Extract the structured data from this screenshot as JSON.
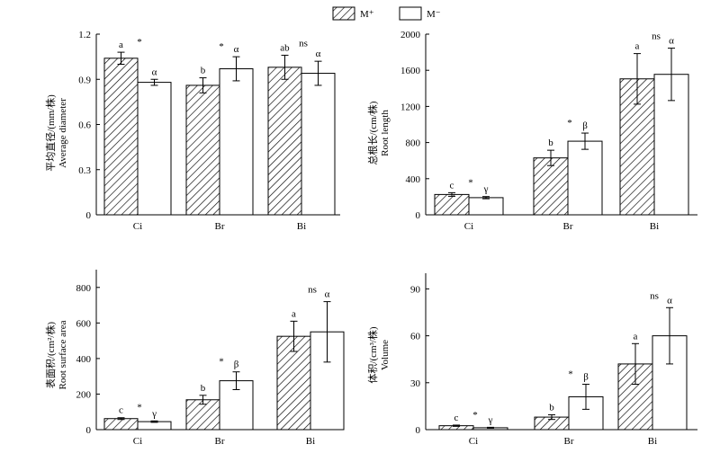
{
  "legend": {
    "items": [
      {
        "label": "M⁺",
        "pattern": "hatch"
      },
      {
        "label": "M⁻",
        "pattern": "open"
      }
    ]
  },
  "colors": {
    "ink": "#000000",
    "fill_open": "#ffffff"
  },
  "chart_data": [
    {
      "type": "bar",
      "ylabel_cn": "平均直径/(mm/株)",
      "ylabel_en": "Average diameter",
      "categories": [
        "Ci",
        "Br",
        "Bi"
      ],
      "ylim": [
        0,
        1.2
      ],
      "yticks": [
        0,
        0.3,
        0.6,
        0.9,
        1.2
      ],
      "ytick_labels": [
        "0",
        "0.3",
        "0.6",
        "0.9",
        "1.2"
      ],
      "series": [
        {
          "name": "M⁺",
          "values": [
            1.04,
            0.86,
            0.98
          ],
          "errors": [
            0.04,
            0.05,
            0.08
          ],
          "letters": [
            "a",
            "b",
            "ab"
          ]
        },
        {
          "name": "M⁻",
          "values": [
            0.88,
            0.97,
            0.94
          ],
          "errors": [
            0.02,
            0.08,
            0.08
          ],
          "letters": [
            "α",
            "α",
            "α"
          ]
        }
      ],
      "significance": [
        "*",
        "*",
        "ns"
      ]
    },
    {
      "type": "bar",
      "ylabel_cn": "总根长/(cm/株)",
      "ylabel_en": "Root length",
      "categories": [
        "Ci",
        "Br",
        "Bi"
      ],
      "ylim": [
        0,
        2000
      ],
      "yticks": [
        0,
        400,
        800,
        1200,
        1600,
        2000
      ],
      "ytick_labels": [
        "0",
        "400",
        "800",
        "1200",
        "1600",
        "2000"
      ],
      "series": [
        {
          "name": "M⁺",
          "values": [
            225,
            630,
            1505
          ],
          "errors": [
            20,
            85,
            280
          ],
          "letters": [
            "c",
            "b",
            "a"
          ]
        },
        {
          "name": "M⁻",
          "values": [
            190,
            815,
            1555
          ],
          "errors": [
            12,
            90,
            290
          ],
          "letters": [
            "γ",
            "β",
            "α"
          ]
        }
      ],
      "significance": [
        "*",
        "*",
        "ns"
      ]
    },
    {
      "type": "bar",
      "ylabel_cn": "表面积/(cm²/株)",
      "ylabel_en": "Root surface area",
      "categories": [
        "Ci",
        "Br",
        "Bi"
      ],
      "ylim": [
        0,
        900
      ],
      "yticks": [
        0,
        200,
        400,
        600,
        800
      ],
      "ytick_labels": [
        "0",
        "200",
        "400",
        "600",
        "800"
      ],
      "series": [
        {
          "name": "M⁺",
          "values": [
            62,
            168,
            525
          ],
          "errors": [
            5,
            25,
            85
          ],
          "letters": [
            "c",
            "b",
            "a"
          ]
        },
        {
          "name": "M⁻",
          "values": [
            45,
            275,
            550
          ],
          "errors": [
            4,
            50,
            170
          ],
          "letters": [
            "γ",
            "β",
            "α"
          ]
        }
      ],
      "significance": [
        "*",
        "*",
        "ns"
      ]
    },
    {
      "type": "bar",
      "ylabel_cn": "体积/(cm³/株)",
      "ylabel_en": "Volume",
      "categories": [
        "Ci",
        "Br",
        "Bi"
      ],
      "ylim": [
        0,
        100
      ],
      "yticks": [
        0,
        30,
        60,
        90
      ],
      "ytick_labels": [
        "0",
        "30",
        "60",
        "90"
      ],
      "series": [
        {
          "name": "M⁺",
          "values": [
            2.5,
            8,
            42
          ],
          "errors": [
            0.4,
            1.5,
            13
          ],
          "letters": [
            "c",
            "b",
            "a"
          ]
        },
        {
          "name": "M⁻",
          "values": [
            1.2,
            21,
            60
          ],
          "errors": [
            0.3,
            8,
            18
          ],
          "letters": [
            "γ",
            "β",
            "α"
          ]
        }
      ],
      "significance": [
        "*",
        "*",
        "ns"
      ]
    }
  ]
}
